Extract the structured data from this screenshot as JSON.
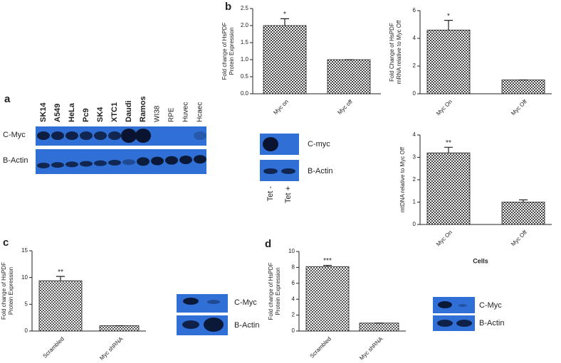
{
  "panel_labels": [
    "a",
    "b",
    "c",
    "d"
  ],
  "blots": {
    "a": {
      "lanes": [
        "SK14",
        "A549",
        "HeLa",
        "Pc9",
        "SK4",
        "XTC1",
        "Daudi",
        "Ramos",
        "WI38",
        "RPE",
        "Huvec",
        "Hcaec"
      ],
      "rows": [
        "C-Myc",
        "B-Actin"
      ]
    },
    "b": {
      "rows": [
        "C-myc",
        "B-Actin"
      ],
      "lanes": [
        "Tet -",
        "Tet +"
      ]
    },
    "c": {
      "rows": [
        "C-Myc",
        "B-Actin"
      ]
    },
    "d": {
      "rows": [
        "C-Myc",
        "B-Actin"
      ]
    }
  },
  "chart_data": [
    {
      "type": "bar",
      "ylabel": [
        "Fold change of HsPDF",
        "Protein Expression"
      ],
      "categories": [
        "Myc on",
        "Myc off"
      ],
      "values": [
        2.0,
        1.0
      ],
      "errors": [
        0.2,
        0
      ],
      "annotations": [
        "*"
      ],
      "color": "#444444",
      "ylim": [
        0,
        2.5
      ],
      "yticks": [
        {
          "value": 0,
          "label": "0.0"
        },
        {
          "value": 0.5,
          "label": "0.5"
        },
        {
          "value": 1,
          "label": "1.0"
        },
        {
          "value": 1.5,
          "label": "1.5"
        },
        {
          "value": 2,
          "label": "2.0"
        },
        {
          "value": 2.5,
          "label": "2.5"
        }
      ]
    },
    {
      "type": "bar",
      "ylabel": [
        "Fold Change of HsPDF",
        "mRNA relative to Myc Off"
      ],
      "categories": [
        "Myc On",
        "Myc Off"
      ],
      "values": [
        4.6,
        1.0
      ],
      "errors": [
        0.7,
        0
      ],
      "annotations": [
        "*"
      ],
      "color": "#444444",
      "ylim": [
        0,
        6
      ],
      "yticks": [
        0,
        2,
        4,
        6
      ]
    },
    {
      "type": "bar",
      "ylabel": [
        "mtDNA relative to Myc Off"
      ],
      "xlabel": "Cells",
      "categories": [
        "Myc On",
        "Myc Off"
      ],
      "values": [
        3.2,
        1.0
      ],
      "errors": [
        0.25,
        0.1
      ],
      "annotations": [
        "**"
      ],
      "color": "#444444",
      "ylim": [
        0,
        4
      ],
      "yticks": [
        0,
        1,
        2,
        3,
        4
      ]
    },
    {
      "type": "bar",
      "ylabel": [
        "Fold change of HsPDF",
        "Protein Expression"
      ],
      "categories": [
        "Scrambled",
        "Myc shRNA"
      ],
      "values": [
        9.4,
        1.0
      ],
      "errors": [
        0.8,
        0
      ],
      "annotations": [
        "**"
      ],
      "color": "#555555",
      "ylim": [
        0,
        15
      ],
      "yticks": [
        0,
        5,
        10,
        15
      ]
    },
    {
      "type": "bar",
      "ylabel": [
        "Fold change of HsPDF",
        "Protein Expression"
      ],
      "categories": [
        "Scrambled",
        "Myc shRNA"
      ],
      "values": [
        8.1,
        1.0
      ],
      "errors": [
        0.15,
        0
      ],
      "annotations": [
        "***"
      ],
      "color": "#555555",
      "ylim": [
        0,
        10
      ],
      "yticks": [
        0,
        2,
        4,
        6,
        8,
        10
      ]
    }
  ]
}
